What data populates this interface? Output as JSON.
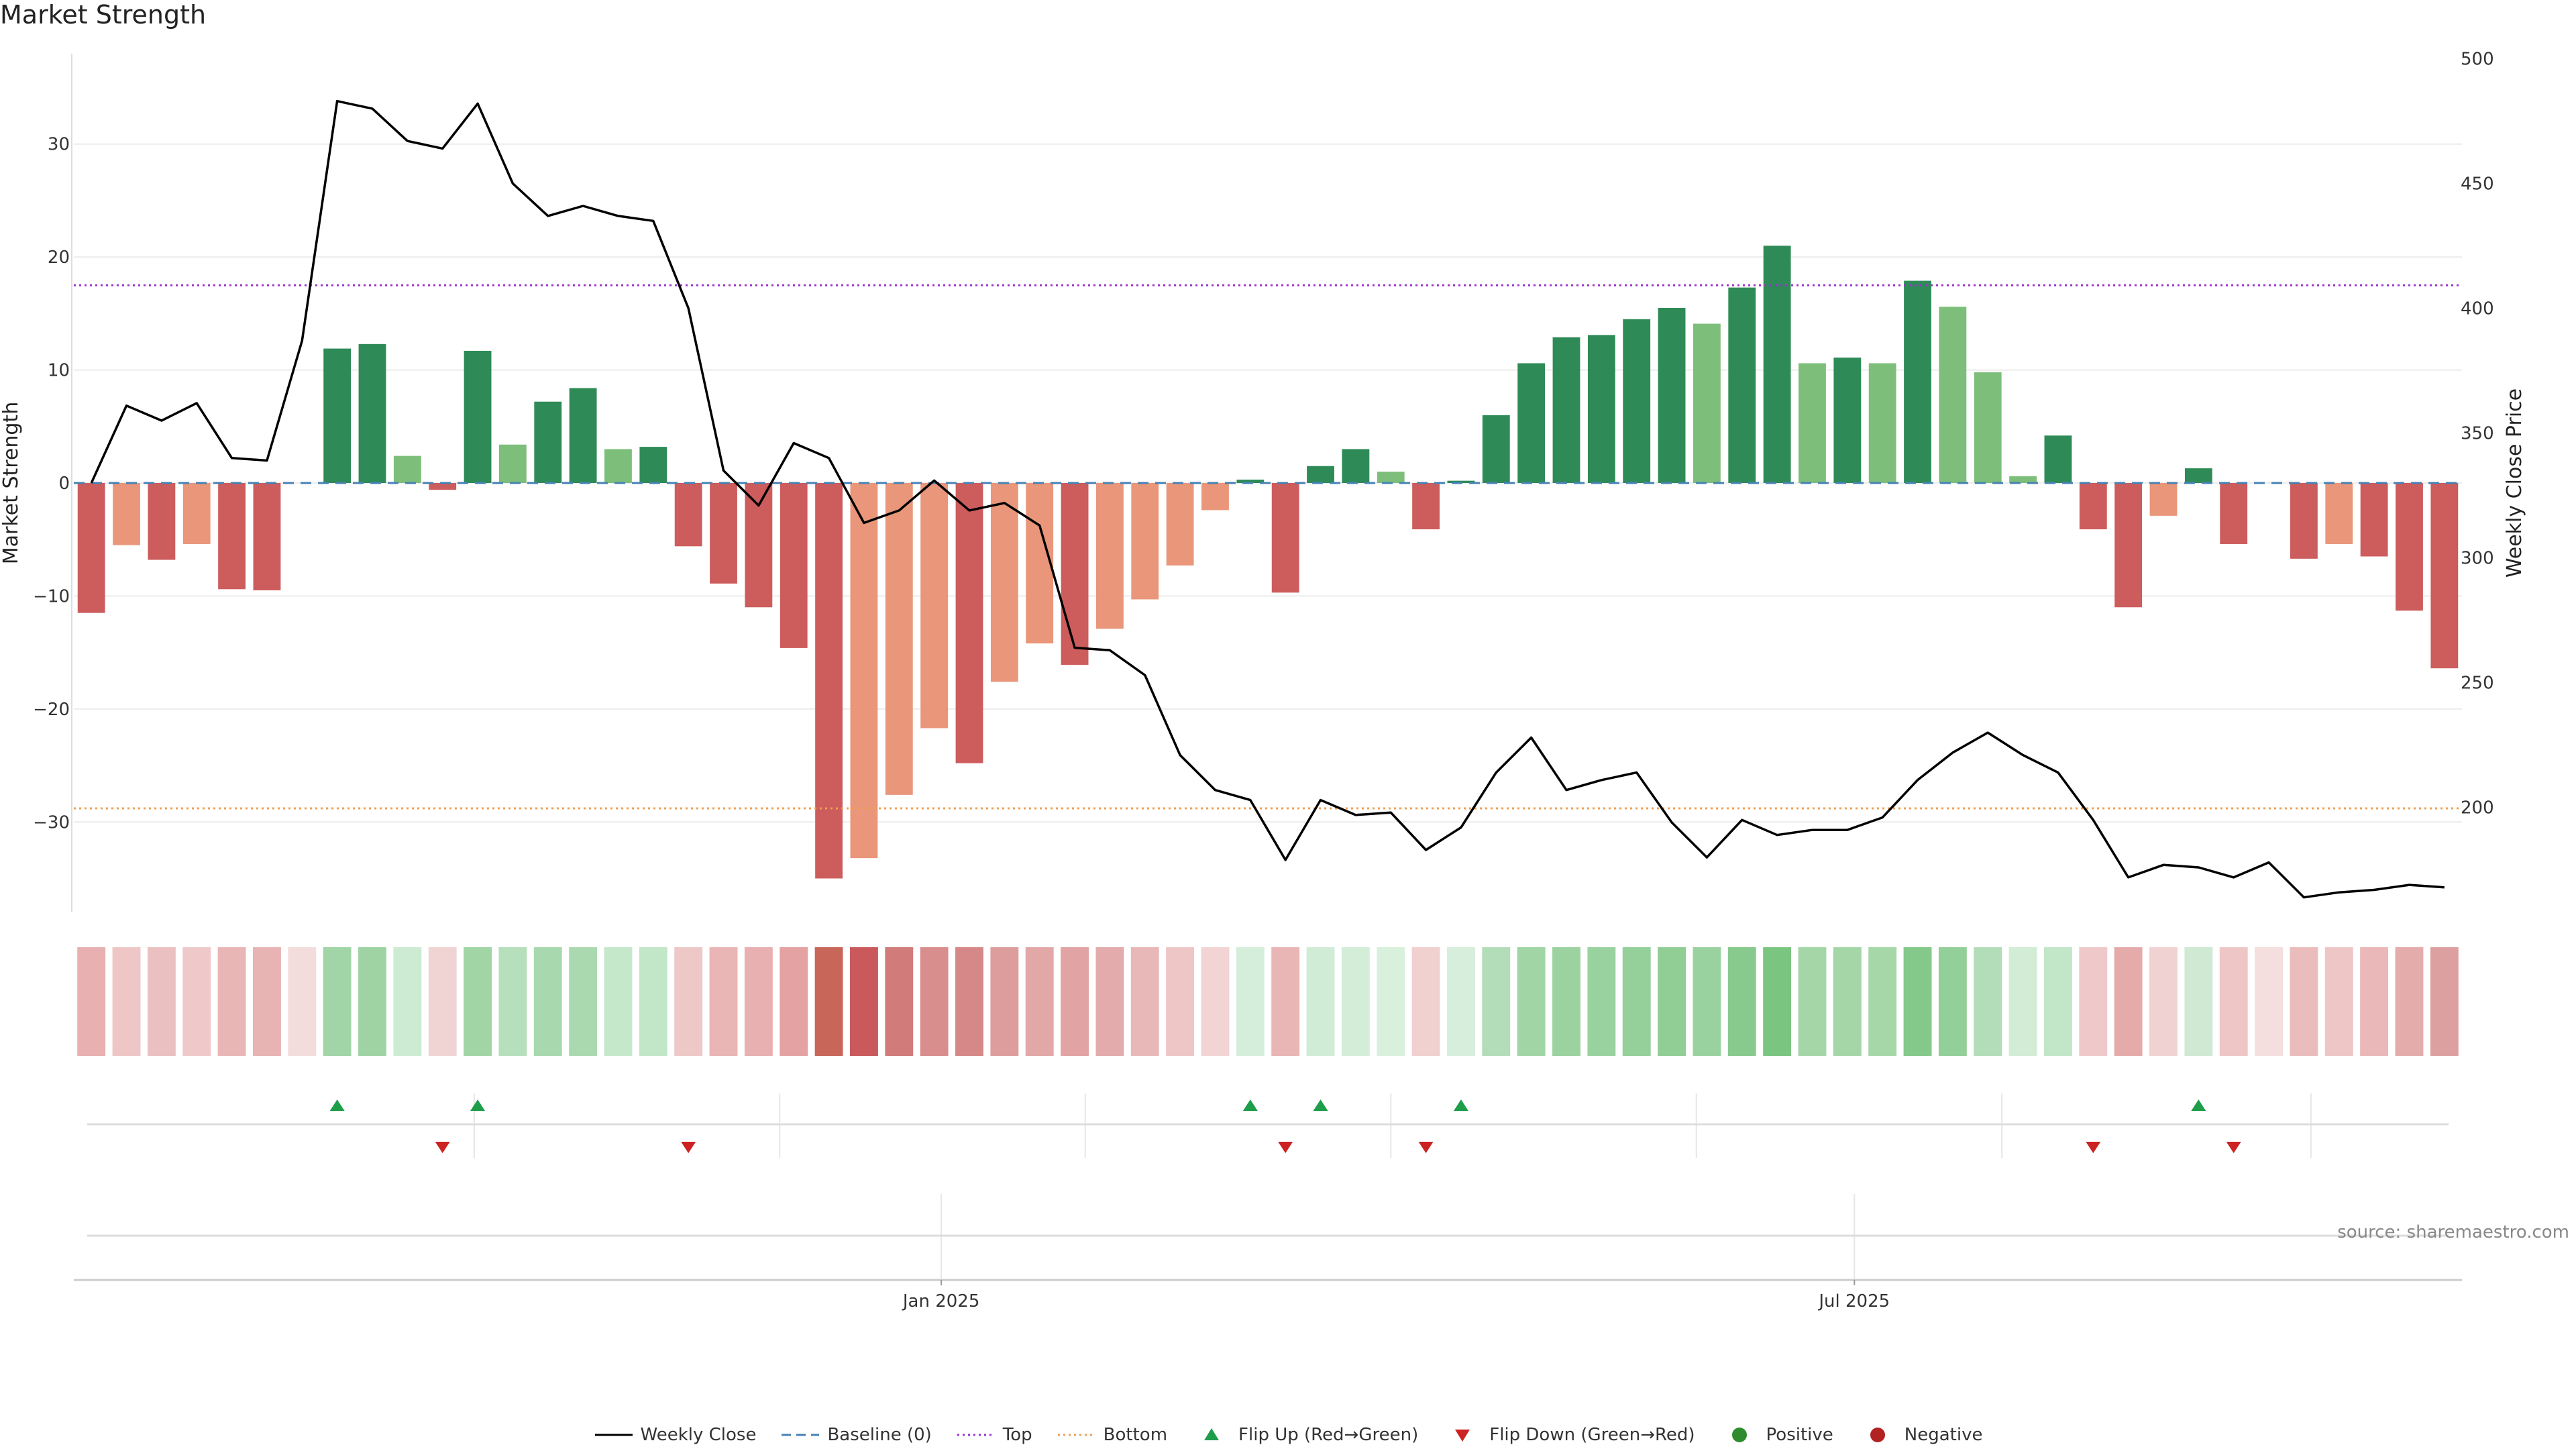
{
  "title": "Market Strength",
  "source": "source: sharemaestro.com",
  "colors": {
    "strong_green": "#2e8b57",
    "light_green": "#7dbf7a",
    "strong_red": "#cd5c5c",
    "light_red": "#e9967a",
    "price_line": "#000000",
    "baseline": "#4682b4",
    "top": "#9b30d0",
    "bottom": "#f0a050",
    "flip_up": "#1e9e4a",
    "flip_down": "#cc2222",
    "positive": "#2e8b2e",
    "negative": "#b22222"
  },
  "legend": [
    {
      "label": "Weekly Close",
      "icon": "solid-line"
    },
    {
      "label": "Baseline (0)",
      "icon": "dashed-line"
    },
    {
      "label": "Top",
      "icon": "dotted-line-purple"
    },
    {
      "label": "Bottom",
      "icon": "dotted-line-orange"
    },
    {
      "label": "Flip Up (Red→Green)",
      "icon": "triangle-up"
    },
    {
      "label": "Flip Down (Green→Red)",
      "icon": "triangle-down"
    },
    {
      "label": "Positive",
      "icon": "dot-green"
    },
    {
      "label": "Negative",
      "icon": "dot-red"
    }
  ],
  "chart_data": {
    "type": "bar",
    "ylabel": "Market Strength",
    "y2label": "Weekly Close Price",
    "ylim": [
      -38,
      38
    ],
    "y2lim": [
      158,
      502
    ],
    "yticks": [
      -30,
      -20,
      -10,
      0,
      10,
      20,
      30
    ],
    "y2ticks": [
      200,
      250,
      300,
      350,
      400,
      450,
      500
    ],
    "xtick_labels": [
      "Jan 2025",
      "Jul 2025"
    ],
    "xtick_positions": [
      24.7,
      50.7
    ],
    "baseline": 0,
    "top_threshold": 17.5,
    "bottom_threshold": -28.8,
    "series": [
      {
        "name": "Market Strength",
        "values": [
          -11.5,
          -5.5,
          -6.8,
          -5.4,
          -9.4,
          -9.5,
          0,
          11.9,
          12.3,
          2.4,
          -0.6,
          11.7,
          3.4,
          7.2,
          8.4,
          3.0,
          3.2,
          -5.6,
          -8.9,
          -11.0,
          -14.6,
          -35.0,
          -33.2,
          -27.6,
          -21.7,
          -24.8,
          -17.6,
          -14.2,
          -16.1,
          -12.9,
          -10.3,
          -7.3,
          -2.4,
          0.3,
          -9.7,
          1.5,
          3.0,
          1.0,
          -4.1,
          0.2,
          6.0,
          10.6,
          12.9,
          13.1,
          14.5,
          15.5,
          14.1,
          17.3,
          21.0,
          10.6,
          11.1,
          10.6,
          17.9,
          15.6,
          9.8,
          0.6,
          4.2,
          -4.1,
          -11.0,
          -2.9,
          1.3,
          -5.4,
          0.0,
          -6.7,
          -5.4,
          -6.5,
          -11.3,
          -16.4
        ],
        "styles": [
          "sr",
          "lr",
          "sr",
          "lr",
          "sr",
          "sr",
          "sg",
          "sg",
          "sg",
          "lg",
          "sr",
          "sg",
          "lg",
          "sg",
          "sg",
          "lg",
          "sg",
          "sr",
          "sr",
          "sr",
          "sr",
          "sr",
          "lr",
          "lr",
          "lr",
          "sr",
          "lr",
          "lr",
          "sr",
          "lr",
          "lr",
          "lr",
          "lr",
          "sg",
          "sr",
          "sg",
          "sg",
          "lg",
          "sr",
          "sg",
          "sg",
          "sg",
          "sg",
          "sg",
          "sg",
          "sg",
          "lg",
          "sg",
          "sg",
          "lg",
          "sg",
          "lg",
          "sg",
          "lg",
          "lg",
          "lg",
          "sg",
          "sr",
          "sr",
          "lr",
          "sg",
          "sr",
          "sr",
          "sr",
          "lr",
          "sr",
          "sr",
          "sr"
        ]
      },
      {
        "name": "Weekly Close",
        "x": [
          0,
          1,
          2,
          3,
          4,
          5,
          6,
          7,
          8,
          9,
          10,
          11,
          12,
          13,
          14,
          15,
          16,
          17,
          18,
          19,
          20,
          21,
          22,
          23,
          24,
          25,
          26,
          27,
          28,
          29,
          30,
          31,
          32,
          33,
          34,
          35,
          36,
          37,
          38,
          39,
          40,
          41,
          42,
          43,
          44,
          45,
          46,
          47,
          48,
          49,
          50,
          51,
          52,
          53,
          54,
          55,
          56,
          57,
          58,
          59,
          60,
          61,
          62,
          63,
          64,
          65,
          66,
          67
        ],
        "values": [
          330,
          361,
          355,
          362,
          340,
          339,
          387,
          483,
          480,
          467,
          464,
          482,
          450,
          437,
          441,
          437,
          435,
          400,
          335,
          321,
          346,
          340,
          314,
          319,
          331,
          319,
          322,
          313,
          264,
          263,
          253,
          221,
          207,
          203,
          179,
          203,
          197,
          198,
          183,
          192,
          214,
          228,
          207,
          211,
          214,
          194,
          180,
          195,
          189,
          191,
          191,
          196,
          211,
          222,
          230,
          221,
          214,
          195,
          172,
          177,
          176,
          172,
          178,
          164,
          166,
          167,
          169,
          168
        ]
      }
    ],
    "heat_colors": [
      "#e8b0b0",
      "#eec6c6",
      "#eac0c0",
      "#efc9c9",
      "#e9b6b6",
      "#e8b3b3",
      "#f4dcdc",
      "#a1d4a6",
      "#9fd3a4",
      "#cdebd2",
      "#f0d4d4",
      "#a1d5a6",
      "#b6dfbb",
      "#a8d8ad",
      "#aad9af",
      "#c5e8cb",
      "#c2e6c8",
      "#eec7c7",
      "#eab5b5",
      "#e8b0b0",
      "#e5a2a2",
      "#c9665a",
      "#c9595a",
      "#d27b7b",
      "#d98e8e",
      "#d68888",
      "#de9d9d",
      "#e2a7a7",
      "#e1a3a3",
      "#e3abab",
      "#e8b8b8",
      "#eec6c6",
      "#f3d4d4",
      "#d5eedb",
      "#e9b5b5",
      "#d1ecd6",
      "#d3edd8",
      "#d9f0dd",
      "#f1d0d0",
      "#d6eedb",
      "#b2ddb8",
      "#a1d5a6",
      "#9bd29f",
      "#9ad29f",
      "#95d09a",
      "#90ce95",
      "#9ad29f",
      "#88ca8d",
      "#7ac580",
      "#a4d6a8",
      "#a4d6a8",
      "#a5d7a9",
      "#84c98a",
      "#93cf98",
      "#b2ddb8",
      "#d2ecd6",
      "#c2e6c8",
      "#efc9c9",
      "#e5abab",
      "#f1d2d2",
      "#cfe9d3",
      "#eec6c6",
      "#f4dede",
      "#ebbcbc",
      "#eec6c6",
      "#eab8b8",
      "#e5acac",
      "#dca0a0"
    ],
    "flip_up_indices": [
      7,
      11,
      33,
      35,
      39,
      60
    ],
    "flip_down_indices": [
      10,
      17,
      34,
      38,
      57,
      61
    ]
  }
}
